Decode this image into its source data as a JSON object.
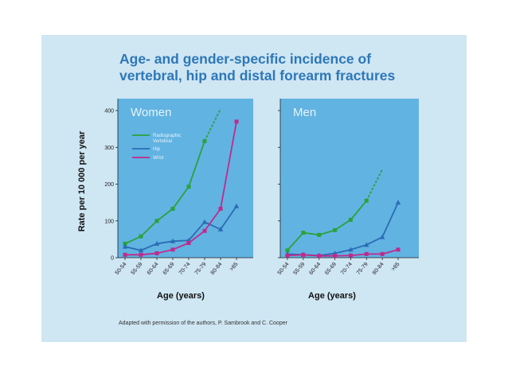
{
  "title_line1": "Age- and gender-specific incidence of",
  "title_line2": "vertebral, hip and distal forearm fractures",
  "ylabel": "Rate per 10 000 per year",
  "xlabel": "Age (years)",
  "credit": "Adapted with permission of the authors, P. Sambrook and C. Cooper",
  "chart_data": [
    {
      "type": "line",
      "title": "Women",
      "categories": [
        "50-54",
        "55-59",
        "60-64",
        "65-69",
        "70-74",
        "75-79",
        "80-84",
        ">85"
      ],
      "ylim": [
        0,
        400
      ],
      "yticks": [
        0,
        100,
        200,
        300,
        400
      ],
      "xlabel": "Age (years)",
      "ylabel": "Rate per 10 000 per year",
      "legend_placement": "top-left",
      "series": [
        {
          "name": "Radiographic Vertebral",
          "color": "#2aa23a",
          "marker": "square",
          "values": [
            38,
            58,
            100,
            133,
            193,
            317,
            null,
            null
          ],
          "dashed_extension_to": 405
        },
        {
          "name": "Hip",
          "color": "#2b6cb3",
          "marker": "triangle",
          "values": [
            30,
            20,
            38,
            45,
            47,
            97,
            77,
            140
          ]
        },
        {
          "name": "Wrist",
          "color": "#c02a8c",
          "marker": "square",
          "values": [
            8,
            8,
            12,
            22,
            40,
            73,
            133,
            370
          ]
        }
      ]
    },
    {
      "type": "line",
      "title": "Men",
      "categories": [
        "50-54",
        "55-59",
        "60-64",
        "65-69",
        "70-74",
        "75-79",
        "80-84",
        ">85"
      ],
      "ylim": [
        0,
        400
      ],
      "xlabel": "Age (years)",
      "series": [
        {
          "name": "Radiographic Vertebral",
          "color": "#2aa23a",
          "marker": "square",
          "values": [
            20,
            68,
            62,
            75,
            103,
            155,
            null,
            null
          ],
          "dashed_extension_to": 240
        },
        {
          "name": "Hip",
          "color": "#2b6cb3",
          "marker": "triangle",
          "values": [
            10,
            8,
            6,
            12,
            22,
            35,
            56,
            150
          ]
        },
        {
          "name": "Wrist",
          "color": "#c02a8c",
          "marker": "square",
          "values": [
            6,
            8,
            5,
            5,
            6,
            10,
            10,
            22
          ]
        }
      ]
    }
  ]
}
